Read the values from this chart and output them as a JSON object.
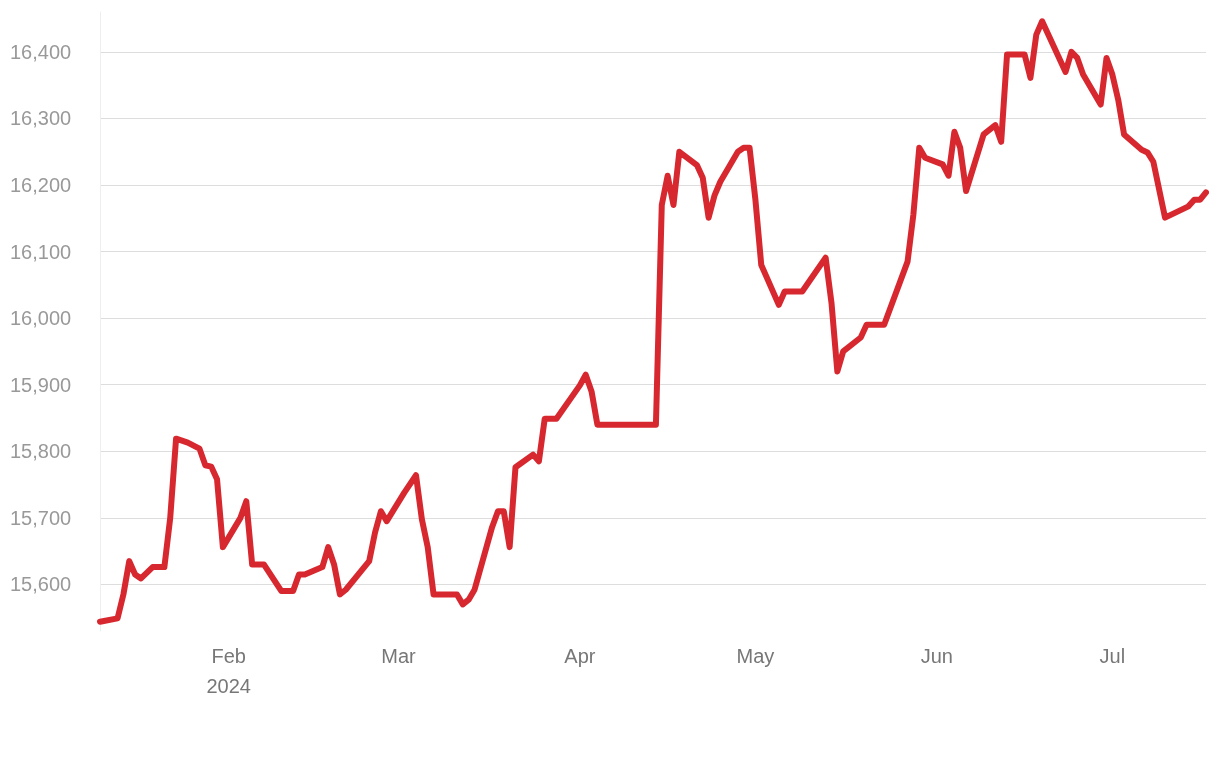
{
  "chart_data": {
    "type": "line",
    "x": [
      "2024-01-10",
      "2024-01-13",
      "2024-01-14",
      "2024-01-15",
      "2024-01-16",
      "2024-01-17",
      "2024-01-19",
      "2024-01-21",
      "2024-01-22",
      "2024-01-23",
      "2024-01-25",
      "2024-01-27",
      "2024-01-28",
      "2024-01-29",
      "2024-01-30",
      "2024-01-31",
      "2024-02-03",
      "2024-02-04",
      "2024-02-05",
      "2024-02-07",
      "2024-02-10",
      "2024-02-12",
      "2024-02-13",
      "2024-02-14",
      "2024-02-17",
      "2024-02-18",
      "2024-02-19",
      "2024-02-20",
      "2024-02-21",
      "2024-02-25",
      "2024-02-26",
      "2024-02-27",
      "2024-02-28",
      "2024-03-02",
      "2024-03-04",
      "2024-03-05",
      "2024-03-06",
      "2024-03-07",
      "2024-03-11",
      "2024-03-12",
      "2024-03-13",
      "2024-03-14",
      "2024-03-17",
      "2024-03-18",
      "2024-03-19",
      "2024-03-20",
      "2024-03-21",
      "2024-03-24",
      "2024-03-25",
      "2024-03-26",
      "2024-03-28",
      "2024-04-01",
      "2024-04-02",
      "2024-04-03",
      "2024-04-04",
      "2024-04-14",
      "2024-04-15",
      "2024-04-16",
      "2024-04-17",
      "2024-04-18",
      "2024-04-21",
      "2024-04-22",
      "2024-04-23",
      "2024-04-24",
      "2024-04-25",
      "2024-04-28",
      "2024-04-29",
      "2024-04-30",
      "2024-05-01",
      "2024-05-02",
      "2024-05-05",
      "2024-05-06",
      "2024-05-09",
      "2024-05-13",
      "2024-05-14",
      "2024-05-15",
      "2024-05-16",
      "2024-05-19",
      "2024-05-20",
      "2024-05-23",
      "2024-05-27",
      "2024-05-28",
      "2024-05-29",
      "2024-05-30",
      "2024-06-02",
      "2024-06-03",
      "2024-06-04",
      "2024-06-05",
      "2024-06-06",
      "2024-06-09",
      "2024-06-11",
      "2024-06-12",
      "2024-06-13",
      "2024-06-16",
      "2024-06-17",
      "2024-06-18",
      "2024-06-19",
      "2024-06-23",
      "2024-06-24",
      "2024-06-25",
      "2024-06-26",
      "2024-06-29",
      "2024-06-30",
      "2024-07-01",
      "2024-07-02",
      "2024-07-03",
      "2024-07-06",
      "2024-07-07",
      "2024-07-08",
      "2024-07-10",
      "2024-07-14",
      "2024-07-15",
      "2024-07-16",
      "2024-07-17"
    ],
    "series": [
      {
        "color": "#d7282f",
        "values": [
          15544,
          15549,
          15585,
          15635,
          15615,
          15609,
          15626,
          15626,
          15700,
          15819,
          15813,
          15804,
          15779,
          15777,
          15758,
          15656,
          15700,
          15725,
          15630,
          15630,
          15590,
          15590,
          15615,
          15615,
          15626,
          15656,
          15630,
          15585,
          15592,
          15635,
          15678,
          15710,
          15695,
          15738,
          15764,
          15698,
          15656,
          15585,
          15585,
          15570,
          15577,
          15592,
          15686,
          15710,
          15710,
          15656,
          15776,
          15795,
          15785,
          15849,
          15849,
          15899,
          15915,
          15890,
          15840,
          15840,
          16170,
          16214,
          16170,
          16250,
          16230,
          16211,
          16151,
          16184,
          16205,
          16250,
          16256,
          16256,
          16178,
          16080,
          16020,
          16040,
          16040,
          16091,
          16023,
          15920,
          15950,
          15971,
          15990,
          15990,
          16085,
          16156,
          16256,
          16241,
          16231,
          16214,
          16280,
          16256,
          16191,
          16276,
          16290,
          16265,
          16396,
          16396,
          16361,
          16426,
          16446,
          16370,
          16400,
          16391,
          16366,
          16321,
          16391,
          16366,
          16328,
          16276,
          16253,
          16249,
          16235,
          16151,
          16168,
          16178,
          16178,
          16189
        ]
      }
    ],
    "xlim": [
      "2024-01-10",
      "2024-07-17"
    ],
    "xticks": [
      {
        "value": "2024-02-01",
        "label": "Feb\n2024"
      },
      {
        "value": "2024-03-01",
        "label": "Mar"
      },
      {
        "value": "2024-04-01",
        "label": "Apr"
      },
      {
        "value": "2024-05-01",
        "label": "May"
      },
      {
        "value": "2024-06-01",
        "label": "Jun"
      },
      {
        "value": "2024-07-01",
        "label": "Jul"
      }
    ],
    "yticks": [
      {
        "value": 15600,
        "label": "15,600"
      },
      {
        "value": 15700,
        "label": "15,700"
      },
      {
        "value": 15800,
        "label": "15,800"
      },
      {
        "value": 15900,
        "label": "15,900"
      },
      {
        "value": 16000,
        "label": "16,000"
      },
      {
        "value": 16100,
        "label": "16,100"
      },
      {
        "value": 16200,
        "label": "16,200"
      },
      {
        "value": 16300,
        "label": "16,300"
      },
      {
        "value": 16400,
        "label": "16,400"
      }
    ],
    "ylim": [
      15530,
      16460
    ],
    "grid": "y",
    "marker": "none",
    "line_style": "solid"
  }
}
